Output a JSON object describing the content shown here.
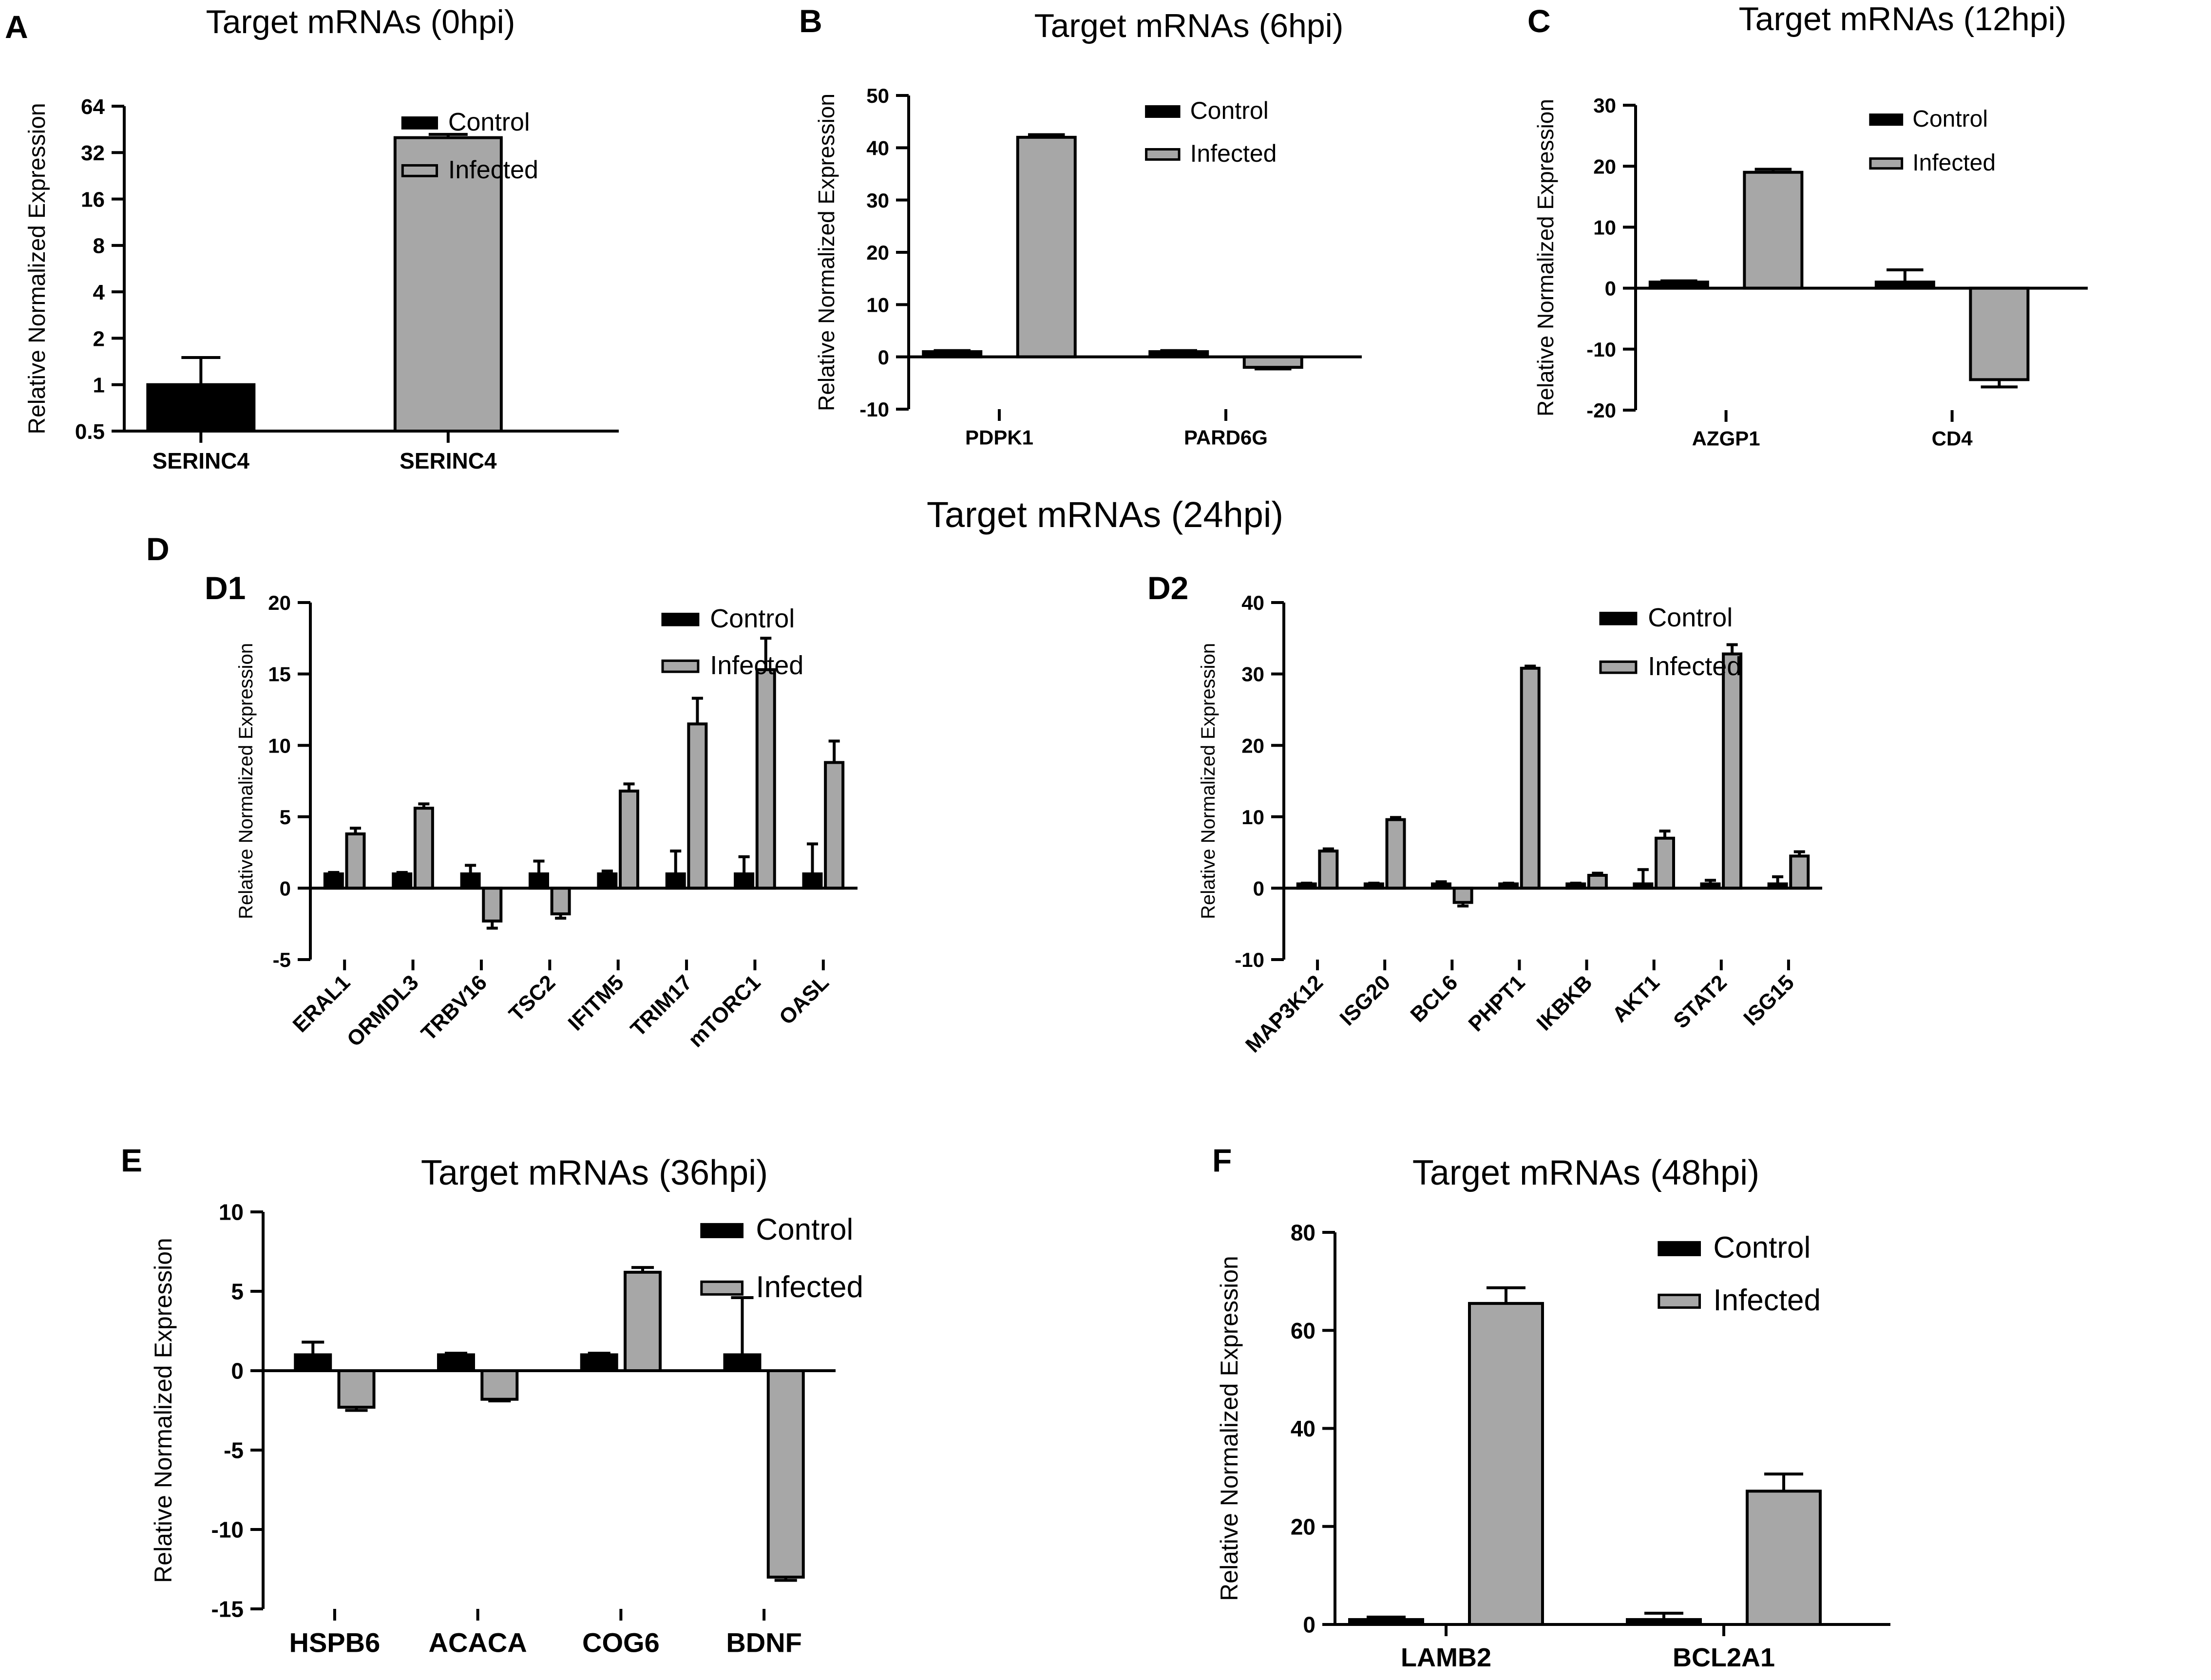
{
  "colors": {
    "control": "#000000",
    "infected": "#a7a7a7",
    "axis": "#000000",
    "background": "#ffffff"
  },
  "section_title": "Target mRNAs (24hpi)",
  "chart_data": [
    {
      "panel": "A",
      "type": "bar",
      "scale": "log2",
      "title": "Target mRNAs (0hpi)",
      "ylabel": "Relative Normalized Expression",
      "ylim": [
        0.5,
        64
      ],
      "yticks": [
        0.5,
        1,
        2,
        4,
        8,
        16,
        32,
        64
      ],
      "ytick_labels": [
        "0.5",
        "1",
        "2",
        "4",
        "8",
        "16",
        "32",
        "64"
      ],
      "categories": [
        "SERINC4",
        "SERINC4"
      ],
      "series": [
        {
          "name": "Control",
          "values": [
            1,
            null
          ],
          "errors": [
            0.5,
            null
          ]
        },
        {
          "name": "Infected",
          "values": [
            null,
            40
          ],
          "errors": [
            null,
            2
          ]
        }
      ],
      "legend": [
        "Control",
        "Infected"
      ],
      "legend_position": "top-right"
    },
    {
      "panel": "B",
      "type": "bar",
      "title": "Target mRNAs (6hpi)",
      "ylabel": "Relative Normalized Expression",
      "ylim": [
        -10,
        50
      ],
      "yticks": [
        -10,
        0,
        10,
        20,
        30,
        40,
        50
      ],
      "categories": [
        "PDPK1",
        "PARD6G"
      ],
      "series": [
        {
          "name": "Control",
          "values": [
            1,
            1
          ],
          "errors": [
            0.2,
            0.2
          ]
        },
        {
          "name": "Infected",
          "values": [
            42,
            -2
          ],
          "errors": [
            0.5,
            0.3
          ]
        }
      ],
      "legend": [
        "Control",
        "Infected"
      ],
      "legend_position": "top-right"
    },
    {
      "panel": "C",
      "type": "bar",
      "title": "Target mRNAs (12hpi)",
      "ylabel": "Relative Normalized Expression",
      "ylim": [
        -20,
        30
      ],
      "yticks": [
        -20,
        -10,
        0,
        10,
        20,
        30
      ],
      "categories": [
        "AZGP1",
        "CD4"
      ],
      "series": [
        {
          "name": "Control",
          "values": [
            1,
            1
          ],
          "errors": [
            0.2,
            2
          ]
        },
        {
          "name": "Infected",
          "values": [
            19,
            -15
          ],
          "errors": [
            0.5,
            1.2
          ]
        }
      ],
      "legend": [
        "Control",
        "Infected"
      ],
      "legend_position": "top-right"
    },
    {
      "panel": "D1",
      "type": "bar",
      "title": "",
      "ylabel": "Relative Normalized Expression",
      "ylim": [
        -5,
        20
      ],
      "yticks": [
        -5,
        0,
        5,
        10,
        15,
        20
      ],
      "rotated_xticks": true,
      "categories": [
        "ERAL1",
        "ORMDL3",
        "TRBV16",
        "TSC2",
        "IFITM5",
        "TRIM17",
        "mTORC1",
        "OASL"
      ],
      "series": [
        {
          "name": "Control",
          "values": [
            1,
            1,
            1,
            1,
            1,
            1,
            1,
            1
          ],
          "errors": [
            0.1,
            0.1,
            0.6,
            0.9,
            0.2,
            1.6,
            1.2,
            2.1
          ]
        },
        {
          "name": "Infected",
          "values": [
            3.8,
            5.6,
            -2.3,
            -1.8,
            6.8,
            11.5,
            15.3,
            8.8
          ],
          "errors": [
            0.4,
            0.3,
            0.5,
            0.3,
            0.5,
            1.8,
            2.2,
            1.5
          ]
        }
      ],
      "legend": [
        "Control",
        "Infected"
      ],
      "legend_position": "top-right"
    },
    {
      "panel": "D2",
      "type": "bar",
      "title": "",
      "ylabel": "Relative Normalized Expression",
      "ylim": [
        -10,
        40
      ],
      "yticks": [
        -10,
        0,
        10,
        20,
        30,
        40
      ],
      "rotated_xticks": true,
      "categories": [
        "MAP3K12",
        "ISG20",
        "BCL6",
        "PHPT1",
        "IKBKB",
        "AKT1",
        "STAT2",
        "ISG15"
      ],
      "series": [
        {
          "name": "Control",
          "values": [
            0.6,
            0.6,
            0.6,
            0.6,
            0.6,
            0.6,
            0.6,
            0.6
          ],
          "errors": [
            0.1,
            0.1,
            0.3,
            0.1,
            0.1,
            2,
            0.5,
            1
          ]
        },
        {
          "name": "Infected",
          "values": [
            5.2,
            9.6,
            -2,
            30.8,
            1.8,
            7,
            32.8,
            4.5
          ],
          "errors": [
            0.3,
            0.3,
            0.5,
            0.3,
            0.3,
            1,
            1.3,
            0.6
          ]
        }
      ],
      "legend": [
        "Control",
        "Infected"
      ],
      "legend_position": "top-right"
    },
    {
      "panel": "E",
      "type": "bar",
      "title": "Target mRNAs (36hpi)",
      "ylabel": "Relative Normalized Expression",
      "ylim": [
        -15,
        10
      ],
      "yticks": [
        -15,
        -10,
        -5,
        0,
        5,
        10
      ],
      "categories": [
        "HSPB6",
        "ACACA",
        "COG6",
        "BDNF"
      ],
      "series": [
        {
          "name": "Control",
          "values": [
            1,
            1,
            1,
            1
          ],
          "errors": [
            0.8,
            0.1,
            0.1,
            3.6
          ]
        },
        {
          "name": "Infected",
          "values": [
            -2.3,
            -1.8,
            6.2,
            -13
          ],
          "errors": [
            0.2,
            0.1,
            0.3,
            0.2
          ]
        }
      ],
      "legend": [
        "Control",
        "Infected"
      ],
      "legend_position": "top-right"
    },
    {
      "panel": "F",
      "type": "bar",
      "title": "Target mRNAs (48hpi)",
      "ylabel": "Relative Normalized Expression",
      "ylim": [
        0,
        80
      ],
      "yticks": [
        0,
        20,
        40,
        60,
        80
      ],
      "categories": [
        "LAMB2",
        "BCL2A1"
      ],
      "series": [
        {
          "name": "Control",
          "values": [
            1,
            1
          ],
          "errors": [
            0.5,
            1.3
          ]
        },
        {
          "name": "Infected",
          "values": [
            65.5,
            27.2
          ],
          "errors": [
            3.2,
            3.5
          ]
        }
      ],
      "legend": [
        "Control",
        "Infected"
      ],
      "legend_position": "top-right"
    }
  ]
}
